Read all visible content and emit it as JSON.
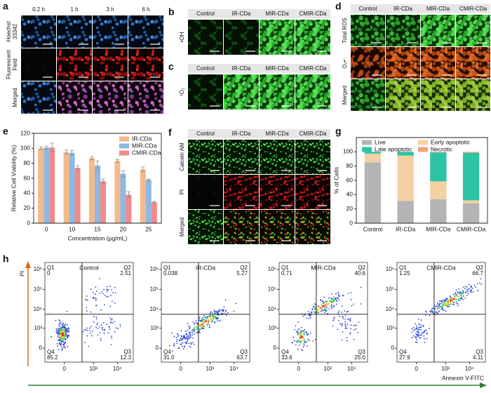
{
  "panel_a": {
    "label": "a",
    "columns": [
      "0.2 h",
      "1 h",
      "3 h",
      "6 h"
    ],
    "rows": [
      [
        "Hoechst",
        "33342"
      ],
      [
        "Fluorescent",
        "Field"
      ],
      [
        "Merged"
      ]
    ]
  },
  "panel_b": {
    "label": "b",
    "columns": [
      "Control",
      "IR-CDa",
      "MIR-CDa",
      "CMIR-CDa"
    ],
    "rows": [
      [
        "•OH"
      ]
    ]
  },
  "panel_c": {
    "label": "c",
    "columns": [
      "Control",
      "IR-CDa",
      "MIR-CDa",
      "CMIR-CDa"
    ],
    "rows": [
      [
        "¹O₂"
      ]
    ]
  },
  "panel_d": {
    "label": "d",
    "columns": [
      "Control",
      "IR-CDa",
      "MIR-CDa",
      "CMIR-CDa"
    ],
    "rows": [
      [
        "Total ROS"
      ],
      [
        "O₂•⁻"
      ],
      [
        "Merged"
      ]
    ]
  },
  "panel_f": {
    "label": "f",
    "columns": [
      "Control",
      "IR-CDa",
      "MIR-CDa",
      "CMIR-CDa"
    ],
    "rows": [
      [
        "Calcein AM"
      ],
      [
        "PI"
      ],
      [
        "Merged"
      ]
    ]
  },
  "chart_data": [
    {
      "type": "bar",
      "panel_label": "e",
      "x_label": "Concentration (μg/mL)",
      "y_label": "Relative Cell Viability (%)",
      "categories": [
        "0",
        "10",
        "15",
        "20",
        "25"
      ],
      "series": [
        {
          "name": "IR-CDa",
          "color": "#f6b98a",
          "values": [
            100,
            95,
            87,
            83,
            72
          ],
          "errors": [
            2,
            3,
            2,
            2,
            3
          ]
        },
        {
          "name": "MIR-CDa",
          "color": "#8db9e2",
          "values": [
            101,
            94,
            77,
            66,
            58
          ],
          "errors": [
            2,
            3,
            6,
            4,
            1
          ]
        },
        {
          "name": "CMIR-CDa",
          "color": "#f08a8a",
          "values": [
            101,
            74,
            56,
            38,
            28
          ],
          "errors": [
            6,
            3,
            3,
            4,
            1
          ]
        }
      ],
      "ylim": [
        0,
        120
      ],
      "yticks": [
        0,
        20,
        40,
        60,
        80,
        100,
        120
      ],
      "legend": "upper right"
    },
    {
      "type": "stacked_bar",
      "panel_label": "g",
      "y_label": "% of Cells",
      "categories": [
        "Control",
        "IR-CDa",
        "MIR-CDa",
        "CMIR-CDa"
      ],
      "series": [
        {
          "name": "Live",
          "color": "#b4b4b4",
          "values": [
            85.2,
            31.0,
            33.6,
            27.9
          ]
        },
        {
          "name": "Early apoptotic",
          "color": "#f5d0a4",
          "values": [
            12.3,
            63.7,
            25.0,
            4.11
          ]
        },
        {
          "name": "Late apoptotic",
          "color": "#2cc4a4",
          "values": [
            2.51,
            5.27,
            40.6,
            66.7
          ]
        },
        {
          "name": "Necrotic",
          "color": "#f4a17c",
          "values": [
            0,
            0.038,
            0.71,
            1.25
          ]
        }
      ],
      "ylim": [
        0,
        120
      ],
      "yticks": [
        0,
        20,
        40,
        60,
        80,
        100
      ],
      "legend": "upper center"
    }
  ],
  "panel_h": {
    "label": "h",
    "y_axis_label": "PI",
    "x_axis_label": "Annexin V-FITC",
    "yticks": [
      "10⁶",
      "10⁵",
      "10⁴",
      "10³",
      "0"
    ],
    "xticks": [
      "0",
      "10³",
      "10⁴"
    ],
    "plots": [
      {
        "title": "Control",
        "quadrants": [
          {
            "name": "Q1",
            "value": "0"
          },
          {
            "name": "Q2",
            "value": "2.51"
          },
          {
            "name": "Q3",
            "value": "12.3"
          },
          {
            "name": "Q4",
            "value": "85.2"
          }
        ]
      },
      {
        "title": "IR-CDa",
        "quadrants": [
          {
            "name": "Q1",
            "value": "0.038"
          },
          {
            "name": "Q2",
            "value": "5.27"
          },
          {
            "name": "Q3",
            "value": "63.7"
          },
          {
            "name": "Q4",
            "value": "31.0"
          }
        ]
      },
      {
        "title": "MIR-CDa",
        "quadrants": [
          {
            "name": "Q1",
            "value": "0.71"
          },
          {
            "name": "Q2",
            "value": "40.6"
          },
          {
            "name": "Q3",
            "value": "25.0"
          },
          {
            "name": "Q4",
            "value": "33.6"
          }
        ]
      },
      {
        "title": "CMIR-CDa",
        "quadrants": [
          {
            "name": "Q1",
            "value": "1.25"
          },
          {
            "name": "Q2",
            "value": "66.7"
          },
          {
            "name": "Q3",
            "value": "4.11"
          },
          {
            "name": "Q4",
            "value": "27.9"
          }
        ]
      }
    ]
  }
}
